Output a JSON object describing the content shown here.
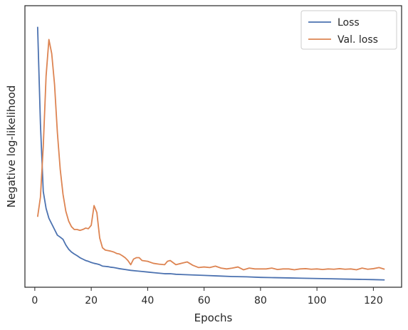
{
  "chart_data": {
    "type": "line",
    "title": "",
    "xlabel": "Epochs",
    "ylabel": "Negative log-likelihood",
    "xlim": [
      -3.5,
      130
    ],
    "ylim": [
      0,
      100
    ],
    "xticks": [
      0,
      20,
      40,
      60,
      80,
      100,
      120
    ],
    "yticks": [],
    "grid": false,
    "legend": "top-right",
    "series": [
      {
        "name": "Loss",
        "color": "#4c72b0",
        "x": [
          1,
          2,
          3,
          4,
          5,
          6,
          7,
          8,
          9,
          10,
          11,
          12,
          13,
          14,
          15,
          16,
          17,
          18,
          19,
          20,
          21,
          22,
          23,
          24,
          25,
          26,
          27,
          28,
          29,
          30,
          32,
          34,
          36,
          38,
          40,
          42,
          44,
          46,
          48,
          50,
          55,
          60,
          65,
          70,
          75,
          80,
          85,
          90,
          95,
          100,
          105,
          110,
          115,
          120,
          124
        ],
        "values": [
          92.5,
          58,
          34,
          28,
          24.5,
          22.5,
          20.5,
          18.5,
          17.8,
          17,
          15,
          13.5,
          12.5,
          11.8,
          11.2,
          10.5,
          10,
          9.5,
          9.2,
          8.8,
          8.5,
          8.3,
          8,
          7.5,
          7.4,
          7.3,
          7.1,
          7,
          6.8,
          6.6,
          6.3,
          6,
          5.8,
          5.6,
          5.4,
          5.2,
          5,
          4.8,
          4.8,
          4.6,
          4.4,
          4.2,
          4,
          3.8,
          3.7,
          3.5,
          3.4,
          3.3,
          3.2,
          3.1,
          3,
          2.9,
          2.8,
          2.7,
          2.6
        ]
      },
      {
        "name": "Val. loss",
        "color": "#dd8452",
        "x": [
          1,
          2,
          3,
          4,
          5,
          6,
          7,
          8,
          9,
          10,
          11,
          12,
          13,
          14,
          15,
          16,
          17,
          18,
          19,
          20,
          21,
          22,
          23,
          24,
          25,
          26,
          27,
          28,
          29,
          30,
          31,
          32,
          33,
          34,
          35,
          36,
          37,
          38,
          40,
          42,
          44,
          46,
          47,
          48,
          50,
          52,
          54,
          56,
          58,
          60,
          62,
          64,
          66,
          68,
          70,
          72,
          74,
          76,
          78,
          80,
          82,
          84,
          86,
          88,
          90,
          92,
          94,
          96,
          98,
          100,
          102,
          104,
          106,
          108,
          110,
          112,
          114,
          116,
          118,
          120,
          122,
          124
        ],
        "values": [
          25,
          32,
          50,
          75,
          88,
          83,
          72,
          55,
          42,
          33,
          27,
          23.5,
          21.5,
          20.5,
          20.5,
          20.2,
          20.5,
          21,
          20.8,
          22,
          29,
          26.5,
          17.5,
          14,
          13.2,
          13,
          12.8,
          12.5,
          12,
          11.8,
          11.2,
          10.5,
          9.5,
          8,
          10,
          10.5,
          10.5,
          9.5,
          9.2,
          8.5,
          8.2,
          8,
          9.2,
          9.5,
          8,
          8.5,
          9,
          7.8,
          7,
          7.2,
          7,
          7.5,
          6.8,
          6.5,
          6.8,
          7.2,
          6.2,
          6.8,
          6.5,
          6.5,
          6.5,
          6.8,
          6.3,
          6.5,
          6.5,
          6.2,
          6.5,
          6.6,
          6.4,
          6.5,
          6.3,
          6.5,
          6.4,
          6.6,
          6.4,
          6.5,
          6.2,
          6.8,
          6.4,
          6.6,
          7,
          6.4
        ]
      }
    ]
  }
}
